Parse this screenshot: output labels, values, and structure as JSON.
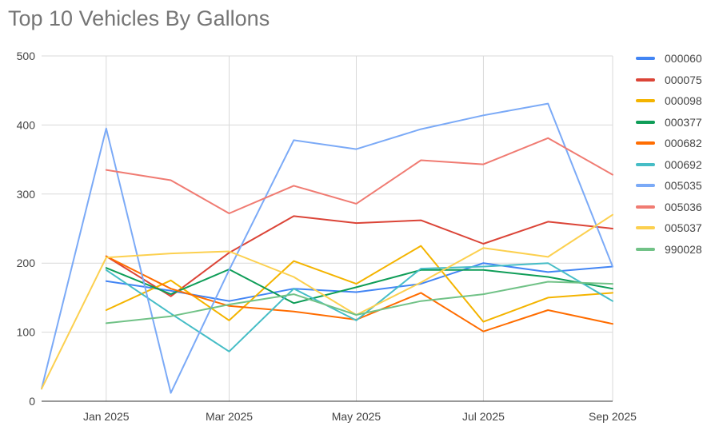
{
  "chart_data": {
    "type": "line",
    "title": "Top 10 Vehicles By Gallons",
    "xlabel": "",
    "ylabel": "",
    "ylim": [
      0,
      500
    ],
    "yticks": [
      0,
      100,
      200,
      300,
      400,
      500
    ],
    "x": [
      "2024-12-01",
      "2025-01-01",
      "2025-02-01",
      "2025-03-01",
      "2025-04-01",
      "2025-05-01",
      "2025-06-01",
      "2025-07-01",
      "2025-08-01",
      "2025-09-01"
    ],
    "xticks": [
      {
        "date": "2025-01-01",
        "label": "Jan 2025"
      },
      {
        "date": "2025-03-01",
        "label": "Mar 2025"
      },
      {
        "date": "2025-05-01",
        "label": "May 2025"
      },
      {
        "date": "2025-07-01",
        "label": "Jul 2025"
      },
      {
        "date": "2025-09-01",
        "label": "Sep 2025"
      }
    ],
    "grid": true,
    "legend_position": "right",
    "series": [
      {
        "name": "000060",
        "color": "#4285f4",
        "values": [
          null,
          174,
          160,
          145,
          163,
          158,
          170,
          200,
          187,
          195
        ]
      },
      {
        "name": "000075",
        "color": "#db4437",
        "values": [
          null,
          210,
          152,
          215,
          268,
          258,
          262,
          228,
          260,
          250
        ]
      },
      {
        "name": "000098",
        "color": "#f4b400",
        "values": [
          null,
          132,
          175,
          117,
          203,
          170,
          225,
          115,
          150,
          157
        ]
      },
      {
        "name": "000377",
        "color": "#0f9d58",
        "values": [
          null,
          193,
          155,
          191,
          142,
          165,
          190,
          190,
          180,
          163
        ]
      },
      {
        "name": "000682",
        "color": "#ff6d01",
        "values": [
          null,
          210,
          163,
          138,
          130,
          118,
          157,
          101,
          132,
          112
        ]
      },
      {
        "name": "000692",
        "color": "#46bdc6",
        "values": [
          null,
          190,
          127,
          72,
          163,
          117,
          192,
          195,
          200,
          145
        ]
      },
      {
        "name": "005035",
        "color": "#7baaf7",
        "values": [
          18,
          395,
          12,
          190,
          378,
          365,
          394,
          414,
          431,
          195
        ]
      },
      {
        "name": "005036",
        "color": "#f07b72",
        "values": [
          null,
          335,
          320,
          272,
          312,
          286,
          349,
          343,
          381,
          328
        ]
      },
      {
        "name": "005037",
        "color": "#fcd04f",
        "values": [
          18,
          208,
          214,
          217,
          180,
          125,
          172,
          222,
          209,
          270
        ]
      },
      {
        "name": "990028",
        "color": "#71c287",
        "values": [
          null,
          113,
          123,
          140,
          155,
          125,
          145,
          155,
          173,
          170
        ]
      }
    ]
  }
}
